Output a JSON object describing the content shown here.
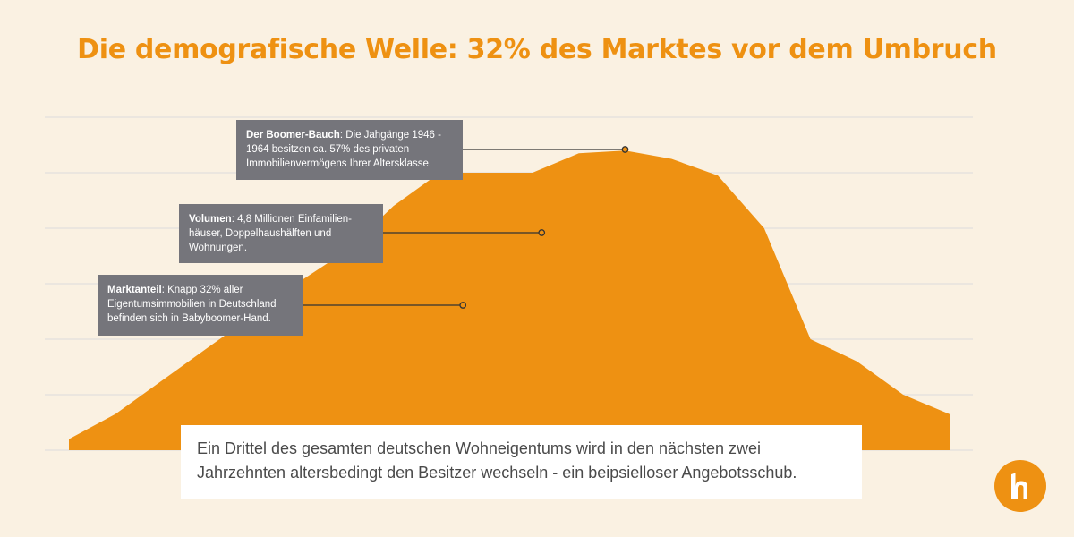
{
  "title": "Die demografische Welle: 32% des Marktes vor dem Umbruch",
  "callouts": [
    {
      "bold": "Der Boomer-Bauch",
      "text": ": Die Jahgänge 1946 - 1964 besitzen ca. 57% des privaten Immobilienvermögens Ihrer Altersklasse."
    },
    {
      "bold": "Volumen",
      "text": ": 4,8 Millionen Einfamilien-häuser, Doppelhaushälften und Wohnungen."
    },
    {
      "bold": "Marktanteil",
      "text": ": Knapp 32% aller Eigentumsimmobilien in Deutschland befinden sich in Babyboomer-Hand."
    }
  ],
  "caption": "Ein Drittel des gesamten deutschen Wohneigentums wird in den nächsten zwei Jahrzehnten altersbedingt den Besitzer wechseln - ein  beipsielloser Angebotsschub.",
  "colors": {
    "background": "#faf1e2",
    "accent": "#ee9112",
    "callout": "#75757b",
    "grid": "#dcdcdc"
  },
  "logo_icon": "house-h-logo-icon",
  "chart_data": {
    "type": "area",
    "grid": true,
    "ylim": [
      0,
      6
    ],
    "x": [
      0,
      1,
      2,
      3,
      4,
      5,
      6,
      7,
      8,
      9,
      10,
      11,
      12,
      13,
      14,
      15,
      16,
      17,
      18,
      19
    ],
    "values": [
      0.2,
      0.65,
      1.25,
      1.85,
      2.45,
      3.05,
      3.6,
      4.4,
      5.0,
      5.0,
      5.0,
      5.35,
      5.4,
      5.25,
      4.95,
      4.0,
      2.0,
      1.6,
      1.0,
      0.65
    ],
    "annotation_points": [
      {
        "x": 12.0,
        "y": 5.4
      },
      {
        "x": 10.2,
        "y": 4.0
      },
      {
        "x": 8.5,
        "y": 2.6
      }
    ]
  }
}
